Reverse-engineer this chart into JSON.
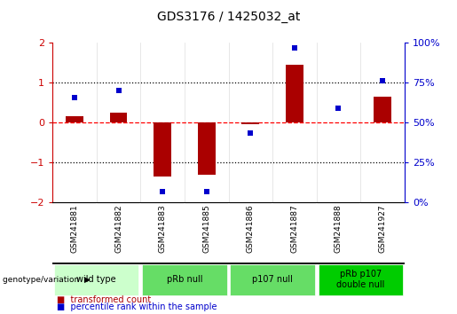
{
  "title": "GDS3176 / 1425032_at",
  "samples": [
    "GSM241881",
    "GSM241882",
    "GSM241883",
    "GSM241885",
    "GSM241886",
    "GSM241887",
    "GSM241888",
    "GSM241927"
  ],
  "red_bars": [
    0.15,
    0.25,
    -1.35,
    -1.3,
    -0.05,
    1.45,
    0.0,
    0.65
  ],
  "blue_dots": [
    0.62,
    0.8,
    -1.72,
    -1.72,
    -0.27,
    1.86,
    0.35,
    1.05
  ],
  "ylim": [
    -2,
    2
  ],
  "yticks_left": [
    -2,
    -1,
    0,
    1,
    2
  ],
  "right_labels": [
    "0%",
    "25%",
    "50%",
    "75%",
    "100%"
  ],
  "bar_color": "#aa0000",
  "dot_color": "#0000cc",
  "bar_width": 0.4,
  "groups": [
    {
      "label": "wild type",
      "count": 2,
      "color": "#ccffcc"
    },
    {
      "label": "pRb null",
      "count": 2,
      "color": "#66dd66"
    },
    {
      "label": "p107 null",
      "count": 2,
      "color": "#66dd66"
    },
    {
      "label": "pRb p107\ndouble null",
      "count": 2,
      "color": "#00cc00"
    }
  ],
  "legend_red_label": "transformed count",
  "legend_blue_label": "percentile rank within the sample",
  "genotype_label": "genotype/variation",
  "bg_color": "#ffffff",
  "plot_bg": "#ffffff",
  "xtick_bg": "#cccccc",
  "right_axis_color": "#0000cc",
  "left_axis_color": "#cc0000"
}
